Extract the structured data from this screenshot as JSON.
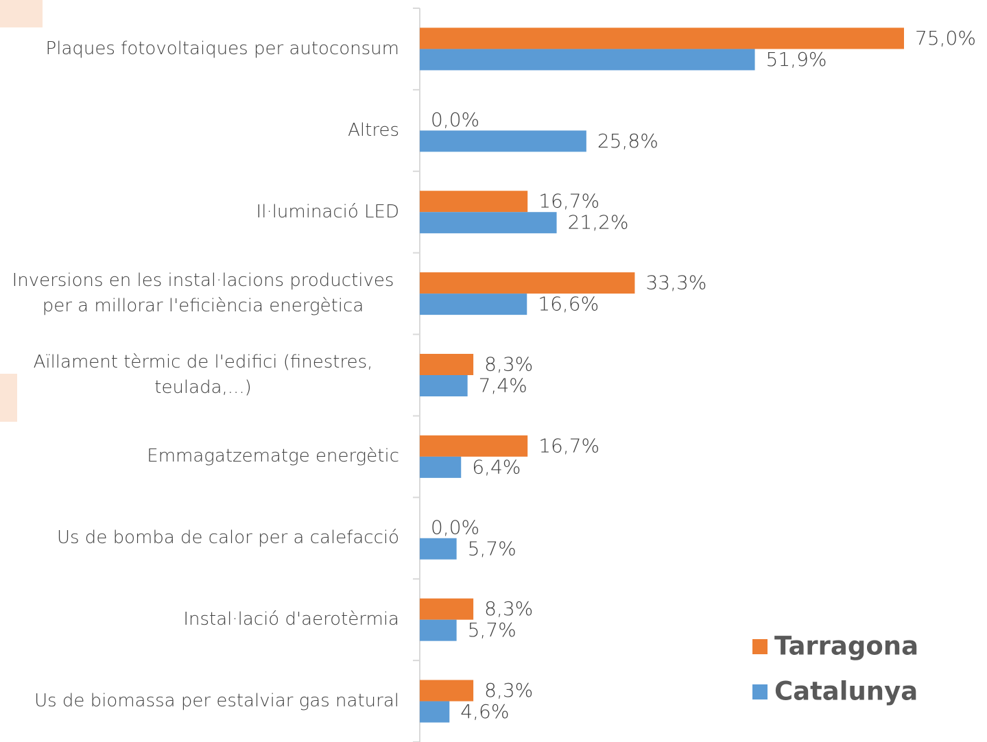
{
  "chart_data": {
    "type": "hbar",
    "categories": [
      "Plaques fotovoltaiques per autoconsum",
      "Altres",
      "Il·luminació LED",
      "Inversions en les instal·lacions productives per a millorar l'eficiència energètica",
      "Aïllament tèrmic de l'edifici (finestres, teulada,...)",
      "Emmagatzematge energètic",
      "Us de bomba de calor per a calefacció",
      "Instal·lació d'aerotèrmia",
      "Us de biomassa per estalviar gas natural"
    ],
    "series": [
      {
        "name": "Tarragona",
        "color": "#ed7d31",
        "values": [
          75.0,
          0.0,
          16.7,
          33.3,
          8.3,
          16.7,
          0.0,
          8.3,
          8.3
        ],
        "value_labels": [
          "75,0%",
          "0,0%",
          "16,7%",
          "33,3%",
          "8,3%",
          "16,7%",
          "0,0%",
          "8,3%",
          "8,3%"
        ]
      },
      {
        "name": "Catalunya",
        "color": "#5b9bd5",
        "values": [
          51.9,
          25.8,
          21.2,
          16.6,
          7.4,
          6.4,
          5.7,
          5.7,
          4.6
        ],
        "value_labels": [
          "51,9%",
          "25,8%",
          "21,2%",
          "16,6%",
          "7,4%",
          "6,4%",
          "5,7%",
          "5,7%",
          "4,6%"
        ]
      }
    ],
    "xlim": [
      0,
      75
    ],
    "legend": "lower right"
  }
}
